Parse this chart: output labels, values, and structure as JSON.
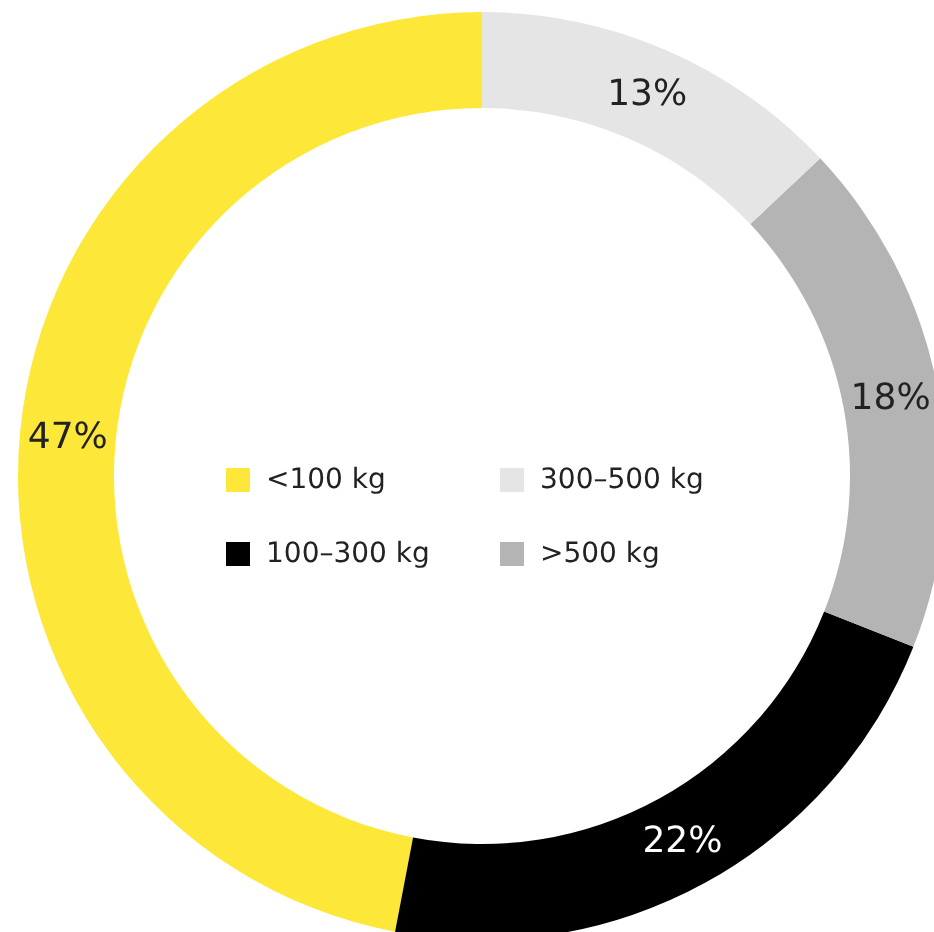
{
  "chart_data": {
    "type": "donut",
    "categories": [
      "<100 kg",
      "100–300 kg",
      ">500 kg",
      "300–500 kg"
    ],
    "values": [
      47,
      22,
      18,
      13
    ],
    "colors": [
      "#fde83a",
      "#000000",
      "#b4b4b4",
      "#e5e5e5"
    ],
    "value_labels": [
      "47%",
      "22%",
      "18%",
      "13%"
    ],
    "legend": "center"
  }
}
